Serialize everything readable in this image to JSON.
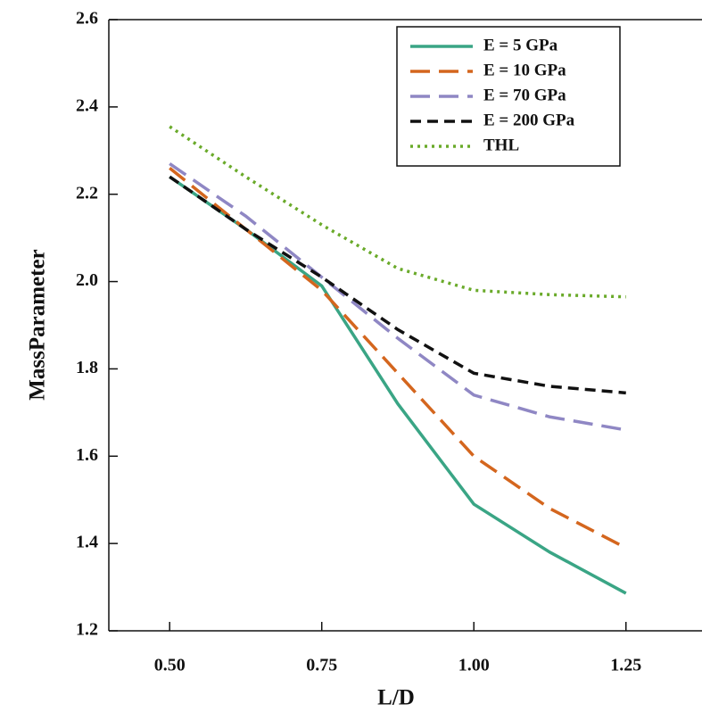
{
  "chart_data": {
    "type": "line",
    "x_label": "L/D",
    "y_label": "MassParameter",
    "x": [
      0.5,
      0.625,
      0.75,
      0.875,
      1.0,
      1.125,
      1.25
    ],
    "series": [
      {
        "name": "E = 5 GPa",
        "color": "#3aa585",
        "dash": "solid",
        "values": [
          2.24,
          2.12,
          1.99,
          1.72,
          1.49,
          1.38,
          1.286
        ]
      },
      {
        "name": "E = 10 GPa",
        "color": "#d4661e",
        "dash": "long-dash",
        "values": [
          2.26,
          2.12,
          1.98,
          1.79,
          1.6,
          1.48,
          1.39
        ]
      },
      {
        "name": "E = 70 GPa",
        "color": "#8f87c4",
        "dash": "long-dash",
        "values": [
          2.27,
          2.15,
          2.01,
          1.87,
          1.74,
          1.69,
          1.66
        ]
      },
      {
        "name": "E = 200 GPa",
        "color": "#111111",
        "dash": "dash",
        "values": [
          2.24,
          2.12,
          2.01,
          1.89,
          1.79,
          1.76,
          1.745
        ]
      },
      {
        "name": "THL",
        "color": "#6aaa2a",
        "dash": "dot",
        "values": [
          2.355,
          2.24,
          2.13,
          2.03,
          1.98,
          1.97,
          1.965
        ]
      }
    ],
    "xlim": [
      0.4,
      1.375
    ],
    "xticks": [
      {
        "value": 0.5,
        "label": "0.50"
      },
      {
        "value": 0.75,
        "label": "0.75"
      },
      {
        "value": 1.0,
        "label": "1.00"
      },
      {
        "value": 1.25,
        "label": "1.25"
      }
    ],
    "ylim": [
      1.2,
      2.6
    ],
    "yticks": [
      1.2,
      1.4,
      1.6,
      1.8,
      {
        "value": 2.0,
        "label": "2.0"
      },
      2.2,
      2.4,
      2.6
    ],
    "legend": "top-right",
    "grid": false
  }
}
